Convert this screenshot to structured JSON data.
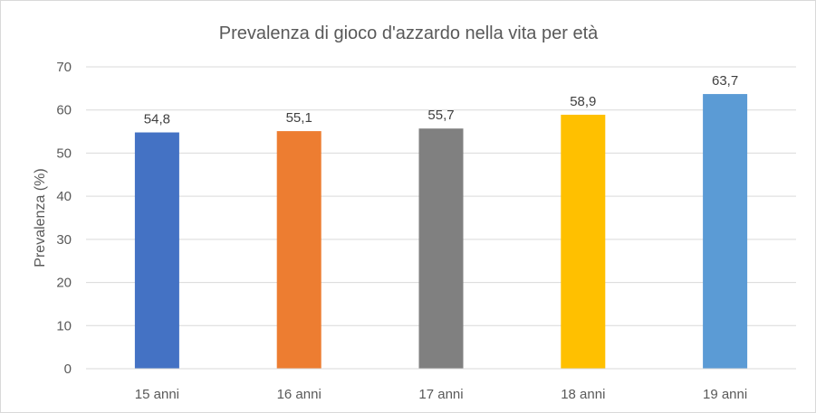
{
  "chart_data": {
    "type": "bar",
    "title": "Prevalenza di gioco d'azzardo nella vita per età",
    "xlabel": "",
    "ylabel": "Prevalenza (%)",
    "categories": [
      "15 anni",
      "16 anni",
      "17 anni",
      "18 anni",
      "19 anni"
    ],
    "values": [
      54.8,
      55.1,
      55.7,
      58.9,
      63.7
    ],
    "value_labels": [
      "54,8",
      "55,1",
      "55,7",
      "58,9",
      "63,7"
    ],
    "ylim": [
      0,
      70
    ],
    "yticks": [
      0,
      10,
      20,
      30,
      40,
      50,
      60,
      70
    ],
    "grid": true,
    "legend": "none",
    "bar_colors": [
      "#4472c4",
      "#ed7d31",
      "#808080",
      "#ffc000",
      "#5b9bd5"
    ]
  }
}
